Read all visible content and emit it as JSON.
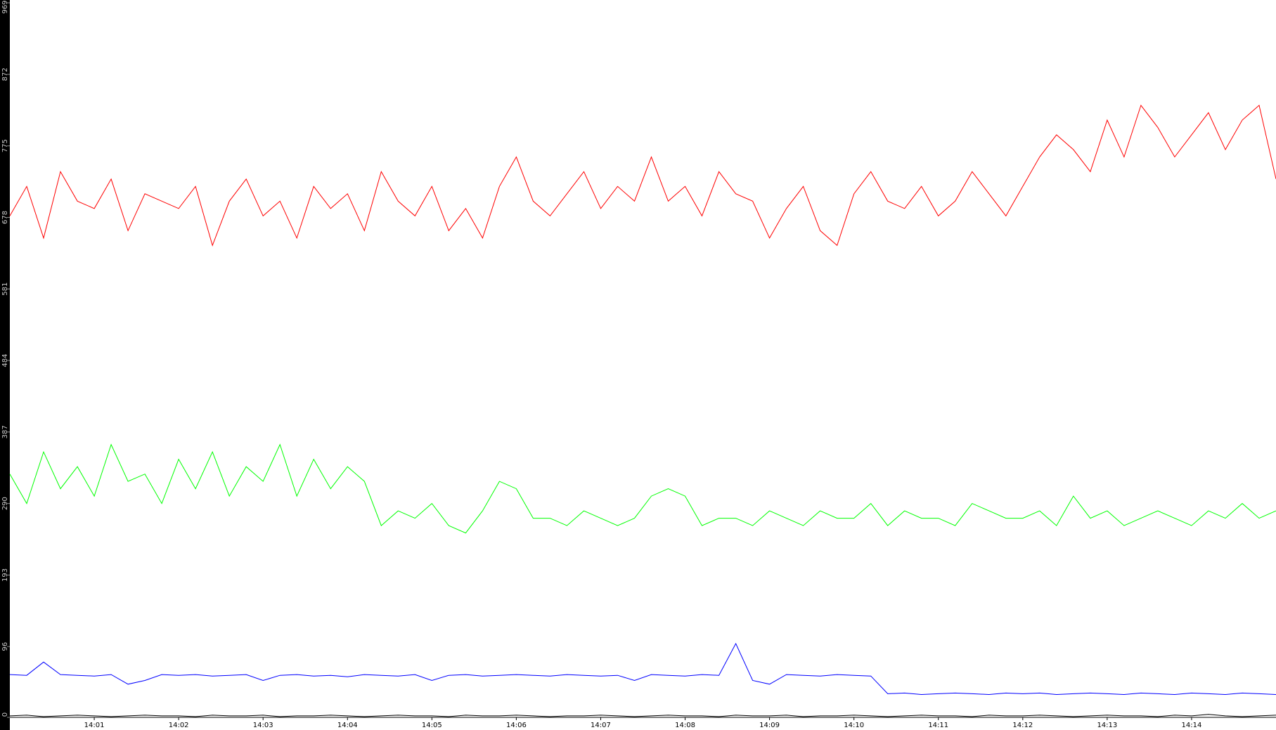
{
  "chart_data": {
    "type": "line",
    "categories": [
      null,
      null,
      null,
      null,
      null,
      "14:01",
      null,
      null,
      null,
      null,
      "14:02",
      null,
      null,
      null,
      null,
      "14:03",
      null,
      null,
      null,
      null,
      "14:04",
      null,
      null,
      null,
      null,
      "14:05",
      null,
      null,
      null,
      null,
      "14:06",
      null,
      null,
      null,
      null,
      "14:07",
      null,
      null,
      null,
      null,
      "14:08",
      null,
      null,
      null,
      null,
      "14:09",
      null,
      null,
      null,
      null,
      "14:10",
      null,
      null,
      null,
      null,
      "14:11",
      null,
      null,
      null,
      null,
      "14:12",
      null,
      null,
      null,
      null,
      "14:13",
      null,
      null,
      null,
      null,
      "14:14",
      null,
      null,
      null,
      null,
      null
    ],
    "series": [
      {
        "color": "#ff0000",
        "values": [
          680,
          720,
          650,
          740,
          700,
          690,
          730,
          660,
          710,
          700,
          690,
          720,
          640,
          700,
          730,
          680,
          700,
          650,
          720,
          690,
          710,
          660,
          740,
          700,
          680,
          720,
          660,
          690,
          650,
          720,
          760,
          700,
          680,
          710,
          740,
          690,
          720,
          700,
          760,
          700,
          720,
          680,
          740,
          710,
          700,
          650,
          690,
          720,
          660,
          640,
          710,
          740,
          700,
          690,
          720,
          680,
          700,
          740,
          710,
          680,
          720,
          760,
          790,
          770,
          740,
          810,
          760,
          830,
          800,
          760,
          790,
          820,
          770,
          810,
          830,
          730
        ]
      },
      {
        "color": "#00ff00",
        "values": [
          330,
          290,
          360,
          310,
          340,
          300,
          370,
          320,
          330,
          290,
          350,
          310,
          360,
          300,
          340,
          320,
          370,
          300,
          350,
          310,
          340,
          320,
          260,
          280,
          270,
          290,
          260,
          250,
          280,
          320,
          310,
          270,
          270,
          260,
          280,
          270,
          260,
          270,
          300,
          310,
          300,
          260,
          270,
          270,
          260,
          280,
          270,
          260,
          280,
          270,
          270,
          290,
          260,
          280,
          270,
          270,
          260,
          290,
          280,
          270,
          270,
          280,
          260,
          300,
          270,
          280,
          260,
          270,
          280,
          270,
          260,
          280,
          270,
          290,
          270,
          280
        ]
      },
      {
        "color": "#0000ff",
        "values": [
          58,
          57,
          75,
          58,
          57,
          56,
          58,
          45,
          50,
          58,
          57,
          58,
          56,
          57,
          58,
          50,
          57,
          58,
          56,
          57,
          55,
          58,
          57,
          56,
          58,
          50,
          57,
          58,
          56,
          57,
          58,
          57,
          56,
          58,
          57,
          56,
          57,
          50,
          58,
          57,
          56,
          58,
          57,
          100,
          50,
          45,
          58,
          57,
          56,
          58,
          57,
          56,
          32,
          33,
          31,
          32,
          33,
          32,
          31,
          33,
          32,
          33,
          31,
          32,
          33,
          32,
          31,
          33,
          32,
          31,
          33,
          32,
          31,
          33,
          32,
          31
        ]
      },
      {
        "color": "#000000",
        "values": [
          2,
          3,
          1,
          2,
          3,
          2,
          1,
          2,
          3,
          2,
          2,
          1,
          3,
          2,
          2,
          3,
          1,
          2,
          2,
          3,
          2,
          1,
          2,
          3,
          2,
          2,
          1,
          3,
          2,
          2,
          3,
          2,
          1,
          2,
          2,
          3,
          2,
          1,
          2,
          3,
          2,
          2,
          1,
          3,
          2,
          2,
          3,
          1,
          2,
          2,
          3,
          2,
          1,
          2,
          3,
          2,
          2,
          1,
          3,
          2,
          2,
          3,
          2,
          1,
          2,
          3,
          2,
          2,
          1,
          3,
          2,
          4,
          2,
          1,
          2,
          3
        ]
      }
    ],
    "ylim": [
      0,
      969
    ],
    "yticks": [
      0,
      96,
      193,
      290,
      387,
      484,
      581,
      678,
      775,
      872,
      969
    ]
  }
}
